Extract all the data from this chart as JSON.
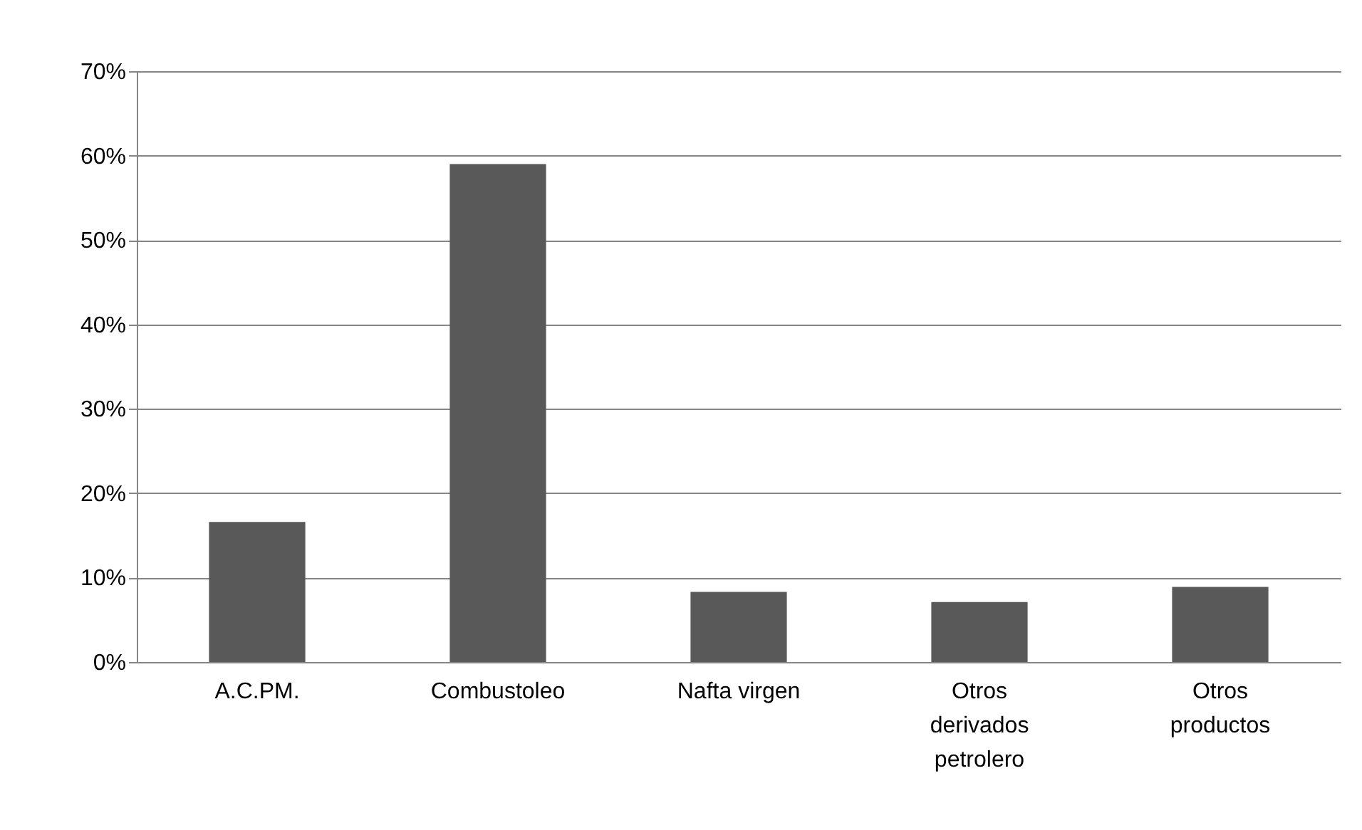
{
  "chart_data": {
    "type": "bar",
    "categories": [
      "A.C.PM.",
      "Combustoleo",
      "Nafta virgen",
      "Otros derivados petrolero",
      "Otros productos"
    ],
    "values": [
      16.6,
      59.0,
      8.3,
      7.1,
      8.9
    ],
    "color": "#595959",
    "ylim": [
      0,
      70
    ],
    "yticks": [
      {
        "value": 0,
        "label": "0%"
      },
      {
        "value": 10,
        "label": "10%"
      },
      {
        "value": 20,
        "label": "20%"
      },
      {
        "value": 30,
        "label": "30%"
      },
      {
        "value": 40,
        "label": "40%"
      },
      {
        "value": 50,
        "label": "50%"
      },
      {
        "value": 60,
        "label": "60%"
      },
      {
        "value": 70,
        "label": "70%"
      }
    ],
    "grid": "y"
  }
}
